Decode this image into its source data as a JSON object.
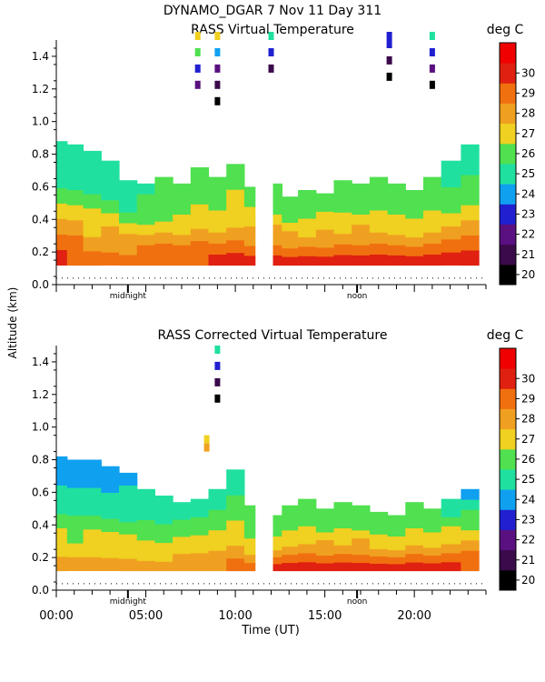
{
  "header": {
    "title": "DYNAMO_DGAR    7 Nov 11 Day 311"
  },
  "shared": {
    "ylabel": "Altitude (km)",
    "xlabel": "Time (UT)",
    "units": "deg C",
    "time_ticks": [
      "00:00",
      "05:00",
      "10:00",
      "15:00",
      "20:00"
    ],
    "day_markers": [
      "midnight",
      "noon"
    ],
    "altitude_ticks": [
      "0.0",
      "0.2",
      "0.4",
      "0.6",
      "0.8",
      "1.0",
      "1.2",
      "1.4"
    ],
    "colorbar": {
      "ticks": [
        "20",
        "21",
        "22",
        "23",
        "24",
        "25",
        "26",
        "27",
        "28",
        "29",
        "30"
      ],
      "colors": [
        "#000000",
        "#3a0a4a",
        "#5a1080",
        "#2020d0",
        "#10a0f0",
        "#20e0a0",
        "#50e050",
        "#f0d020",
        "#f0a020",
        "#f07010",
        "#e02010",
        "#f00000"
      ]
    }
  },
  "chart_data": [
    {
      "type": "heatmap",
      "title": "RASS Virtual Temperature",
      "xlabel": "",
      "ylabel": "Altitude (km)",
      "xlim": [
        0,
        24
      ],
      "ylim": [
        0,
        1.5
      ],
      "zlim": [
        20,
        30
      ],
      "units": "deg C",
      "gap_hours": [
        11.1,
        12.1
      ],
      "profiles": [
        {
          "t": 0.2,
          "top": 0.88,
          "vals": [
            29.5,
            28.5,
            27.5,
            26.5,
            25.5,
            25,
            24.8,
            24.6
          ]
        },
        {
          "t": 1.0,
          "top": 0.86,
          "vals": [
            29.3,
            28.5,
            27.5,
            26.5,
            25.6,
            25.1,
            24.8,
            24.7
          ]
        },
        {
          "t": 2.0,
          "top": 0.82,
          "vals": [
            29.4,
            28.4,
            27.4,
            26.6,
            25.8,
            25.2,
            24.9,
            24.7
          ]
        },
        {
          "t": 3.0,
          "top": 0.76,
          "vals": [
            29.3,
            28.4,
            27.5,
            26.5,
            25.6,
            25.0,
            24.7,
            24.6
          ]
        },
        {
          "t": 4.0,
          "top": 0.64,
          "vals": [
            29.2,
            28.4,
            27.5,
            26.7,
            26.0,
            25.4,
            25.1,
            25.0
          ]
        },
        {
          "t": 5.0,
          "top": 0.62,
          "vals": [
            29.2,
            28.6,
            27.8,
            27.0,
            26.3,
            25.8,
            25.5,
            25.4
          ]
        },
        {
          "t": 6.0,
          "top": 0.66,
          "vals": [
            29.3,
            28.6,
            27.8,
            27.1,
            26.4,
            25.9,
            25.6,
            25.5
          ]
        },
        {
          "t": 7.0,
          "top": 0.62,
          "vals": [
            29.4,
            28.6,
            27.9,
            27.2,
            26.6,
            26.1,
            25.8,
            25.7
          ]
        },
        {
          "t": 8.0,
          "top": 0.72,
          "vals": [
            29.4,
            28.5,
            27.8,
            27.2,
            26.6,
            26.2,
            26.0,
            25.9
          ]
        },
        {
          "t": 9.0,
          "top": 0.66,
          "vals": [
            29.5,
            28.7,
            27.9,
            27.3,
            26.7,
            26.2,
            26.0,
            25.9
          ]
        },
        {
          "t": 10.0,
          "top": 0.74,
          "vals": [
            29.8,
            28.8,
            28.0,
            27.4,
            26.9,
            26.5,
            26.2,
            26.1
          ]
        },
        {
          "t": 11.0,
          "top": 0.6,
          "vals": [
            29.9,
            28.9,
            28.2,
            27.6,
            27.0,
            26.6,
            26.3,
            26.2
          ]
        },
        {
          "t": 12.2,
          "top": 0.62,
          "vals": [
            30.3,
            29.1,
            28.3,
            27.5,
            26.8,
            26.2,
            25.9,
            25.8
          ]
        },
        {
          "t": 13.0,
          "top": 0.54,
          "vals": [
            30.2,
            29.0,
            28.2,
            27.5,
            26.9,
            26.4,
            26.1,
            26.0
          ]
        },
        {
          "t": 14.0,
          "top": 0.58,
          "vals": [
            30.1,
            29.0,
            28.2,
            27.4,
            26.7,
            26.2,
            25.9,
            25.8
          ]
        },
        {
          "t": 15.0,
          "top": 0.56,
          "vals": [
            30.2,
            29.1,
            28.3,
            27.6,
            27.0,
            26.5,
            26.2,
            26.1
          ]
        },
        {
          "t": 16.0,
          "top": 0.64,
          "vals": [
            30.1,
            29.0,
            28.2,
            27.4,
            26.8,
            26.3,
            26.0,
            25.9
          ]
        },
        {
          "t": 17.0,
          "top": 0.62,
          "vals": [
            30.2,
            29.1,
            28.3,
            27.5,
            26.8,
            26.2,
            25.9,
            25.8
          ]
        },
        {
          "t": 18.0,
          "top": 0.66,
          "vals": [
            30.1,
            29.0,
            28.1,
            27.3,
            26.6,
            26.0,
            25.7,
            25.6
          ]
        },
        {
          "t": 19.0,
          "top": 0.62,
          "vals": [
            30.2,
            29.0,
            28.2,
            27.4,
            26.7,
            26.1,
            25.8,
            25.7
          ]
        },
        {
          "t": 20.0,
          "top": 0.58,
          "vals": [
            30.0,
            28.9,
            28.1,
            27.3,
            26.6,
            26.0,
            25.7,
            25.6
          ]
        },
        {
          "t": 21.0,
          "top": 0.66,
          "vals": [
            29.9,
            28.8,
            28.0,
            27.2,
            26.5,
            25.9,
            25.6,
            25.5
          ]
        },
        {
          "t": 22.0,
          "top": 0.76,
          "vals": [
            29.8,
            28.7,
            27.9,
            27.1,
            26.4,
            25.8,
            25.3,
            25.0
          ]
        },
        {
          "t": 23.2,
          "top": 0.86,
          "vals": [
            29.7,
            28.6,
            27.8,
            27.0,
            26.3,
            25.7,
            25.2,
            24.9
          ]
        }
      ],
      "aloft": [
        {
          "t": 7.9,
          "alts": [
            1.2,
            1.3,
            1.4,
            1.5
          ],
          "vals": [
            21.5,
            23.0,
            26.0,
            27.0
          ]
        },
        {
          "t": 9.0,
          "alts": [
            1.1,
            1.2,
            1.3,
            1.4,
            1.5
          ],
          "vals": [
            20.2,
            21.0,
            22.3,
            23.5,
            26.5
          ]
        },
        {
          "t": 12.0,
          "alts": [
            1.3,
            1.4,
            1.5
          ],
          "vals": [
            20.5,
            23.0,
            25.0
          ]
        },
        {
          "t": 18.6,
          "alts": [
            1.25,
            1.35,
            1.45,
            1.5
          ],
          "vals": [
            20.2,
            21.2,
            22.5,
            23.2
          ]
        },
        {
          "t": 21.0,
          "alts": [
            1.2,
            1.3,
            1.4,
            1.5
          ],
          "vals": [
            20.3,
            21.5,
            23.0,
            25.0
          ]
        }
      ]
    },
    {
      "type": "heatmap",
      "title": "RASS Corrected Virtual Temperature",
      "xlabel": "Time (UT)",
      "ylabel": "Altitude (km)",
      "xlim": [
        0,
        24
      ],
      "ylim": [
        0,
        1.5
      ],
      "zlim": [
        20,
        30
      ],
      "units": "deg C",
      "gap_hours": [
        11.1,
        12.1
      ],
      "profiles": [
        {
          "t": 0.2,
          "top": 0.82,
          "vals": [
            27.8,
            27.0,
            26.5,
            25.8,
            25.0,
            24.6,
            24.3,
            24.2
          ]
        },
        {
          "t": 1.0,
          "top": 0.8,
          "vals": [
            27.7,
            27.0,
            26.4,
            25.7,
            25.0,
            24.5,
            24.2,
            24.1
          ]
        },
        {
          "t": 2.0,
          "top": 0.8,
          "vals": [
            27.8,
            27.1,
            26.5,
            25.8,
            25.1,
            24.6,
            24.3,
            24.2
          ]
        },
        {
          "t": 3.0,
          "top": 0.76,
          "vals": [
            27.9,
            27.1,
            26.5,
            25.9,
            25.2,
            24.7,
            24.4,
            24.3
          ]
        },
        {
          "t": 4.0,
          "top": 0.72,
          "vals": [
            27.9,
            27.2,
            26.6,
            26.0,
            25.3,
            24.8,
            24.5,
            24.4
          ]
        },
        {
          "t": 5.0,
          "top": 0.62,
          "vals": [
            28.0,
            27.3,
            26.8,
            26.2,
            25.6,
            25.1,
            24.8,
            24.7
          ]
        },
        {
          "t": 6.0,
          "top": 0.58,
          "vals": [
            28.1,
            27.4,
            26.9,
            26.3,
            25.8,
            25.3,
            25.0,
            24.9
          ]
        },
        {
          "t": 7.0,
          "top": 0.54,
          "vals": [
            28.2,
            27.5,
            27.0,
            26.5,
            26.0,
            25.6,
            25.3,
            25.2
          ]
        },
        {
          "t": 8.0,
          "top": 0.56,
          "vals": [
            28.2,
            27.5,
            27.0,
            26.5,
            26.0,
            25.6,
            25.3,
            25.2
          ]
        },
        {
          "t": 9.0,
          "top": 0.62,
          "vals": [
            28.3,
            27.6,
            27.1,
            26.6,
            26.1,
            25.6,
            25.2,
            25.0
          ]
        },
        {
          "t": 10.0,
          "top": 0.74,
          "vals": [
            28.6,
            27.8,
            27.2,
            26.7,
            26.2,
            25.7,
            25.2,
            24.8
          ]
        },
        {
          "t": 11.0,
          "top": 0.52,
          "vals": [
            28.8,
            28.0,
            27.4,
            26.9,
            26.4,
            26.0,
            25.7,
            25.6
          ]
        },
        {
          "t": 12.2,
          "top": 0.46,
          "vals": [
            29.6,
            28.8,
            28.0,
            27.3,
            26.8,
            26.4,
            26.1,
            26.0
          ]
        },
        {
          "t": 13.0,
          "top": 0.52,
          "vals": [
            29.8,
            28.9,
            28.1,
            27.4,
            26.8,
            26.3,
            26.0,
            25.9
          ]
        },
        {
          "t": 14.0,
          "top": 0.56,
          "vals": [
            29.9,
            29.0,
            28.1,
            27.4,
            26.7,
            26.2,
            25.9,
            25.8
          ]
        },
        {
          "t": 15.0,
          "top": 0.5,
          "vals": [
            29.9,
            29.0,
            28.2,
            27.5,
            26.9,
            26.4,
            26.1,
            26.0
          ]
        },
        {
          "t": 16.0,
          "top": 0.54,
          "vals": [
            29.9,
            28.9,
            28.1,
            27.4,
            26.8,
            26.3,
            26.0,
            25.9
          ]
        },
        {
          "t": 17.0,
          "top": 0.52,
          "vals": [
            29.9,
            29.0,
            28.2,
            27.5,
            26.9,
            26.4,
            26.1,
            26.0
          ]
        },
        {
          "t": 18.0,
          "top": 0.48,
          "vals": [
            29.8,
            28.9,
            28.1,
            27.4,
            26.8,
            26.3,
            26.0,
            25.9
          ]
        },
        {
          "t": 19.0,
          "top": 0.46,
          "vals": [
            29.9,
            28.9,
            28.1,
            27.4,
            26.8,
            26.3,
            26.0,
            25.9
          ]
        },
        {
          "t": 20.0,
          "top": 0.54,
          "vals": [
            29.7,
            28.8,
            28.0,
            27.3,
            26.7,
            26.2,
            25.9,
            25.8
          ]
        },
        {
          "t": 21.0,
          "top": 0.5,
          "vals": [
            29.6,
            28.7,
            27.9,
            27.2,
            26.6,
            26.1,
            25.8,
            25.7
          ]
        },
        {
          "t": 22.0,
          "top": 0.56,
          "vals": [
            29.5,
            28.6,
            27.8,
            27.1,
            26.5,
            25.9,
            25.4,
            25.0
          ]
        },
        {
          "t": 23.2,
          "top": 0.62,
          "vals": [
            29.4,
            28.5,
            27.7,
            27.0,
            26.3,
            25.6,
            24.8,
            24.2
          ]
        }
      ],
      "aloft": [
        {
          "t": 9.0,
          "alts": [
            1.15,
            1.25,
            1.35,
            1.45
          ],
          "vals": [
            20.2,
            21.0,
            22.5,
            24.5
          ]
        },
        {
          "t": 8.4,
          "alts": [
            0.85,
            0.9
          ],
          "vals": [
            27.5,
            26.5
          ]
        }
      ]
    }
  ]
}
